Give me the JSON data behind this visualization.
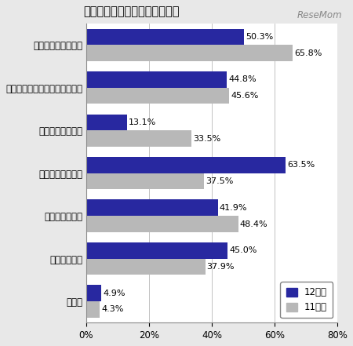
{
  "title": "厳しいと思う理由（複数回答）",
  "watermark": "ReseMom",
  "categories": [
    "不景気による採用減",
    "経済的に（交通費等がかかる）",
    "就職活動の早期化",
    "就職活動の長期化",
    "採用基準の高さ",
    "学業との両立",
    "その他"
  ],
  "series_12": [
    50.3,
    44.8,
    13.1,
    63.5,
    41.9,
    45.0,
    4.9
  ],
  "series_11": [
    65.8,
    45.6,
    33.5,
    37.5,
    48.4,
    37.9,
    4.3
  ],
  "color_12": "#2828a0",
  "color_11": "#b8b8b8",
  "legend_12": "12年卒",
  "legend_11": "11年卒",
  "xlim": [
    0,
    80
  ],
  "xticks": [
    0,
    20,
    40,
    60,
    80
  ],
  "xticklabels": [
    "0%",
    "20%",
    "40%",
    "60%",
    "80%"
  ],
  "bar_height": 0.38,
  "background_color": "#e8e8e8",
  "plot_bg_color": "#ffffff",
  "title_fontsize": 10.5,
  "label_fontsize": 8.5,
  "tick_fontsize": 8.5,
  "value_fontsize": 8.0
}
